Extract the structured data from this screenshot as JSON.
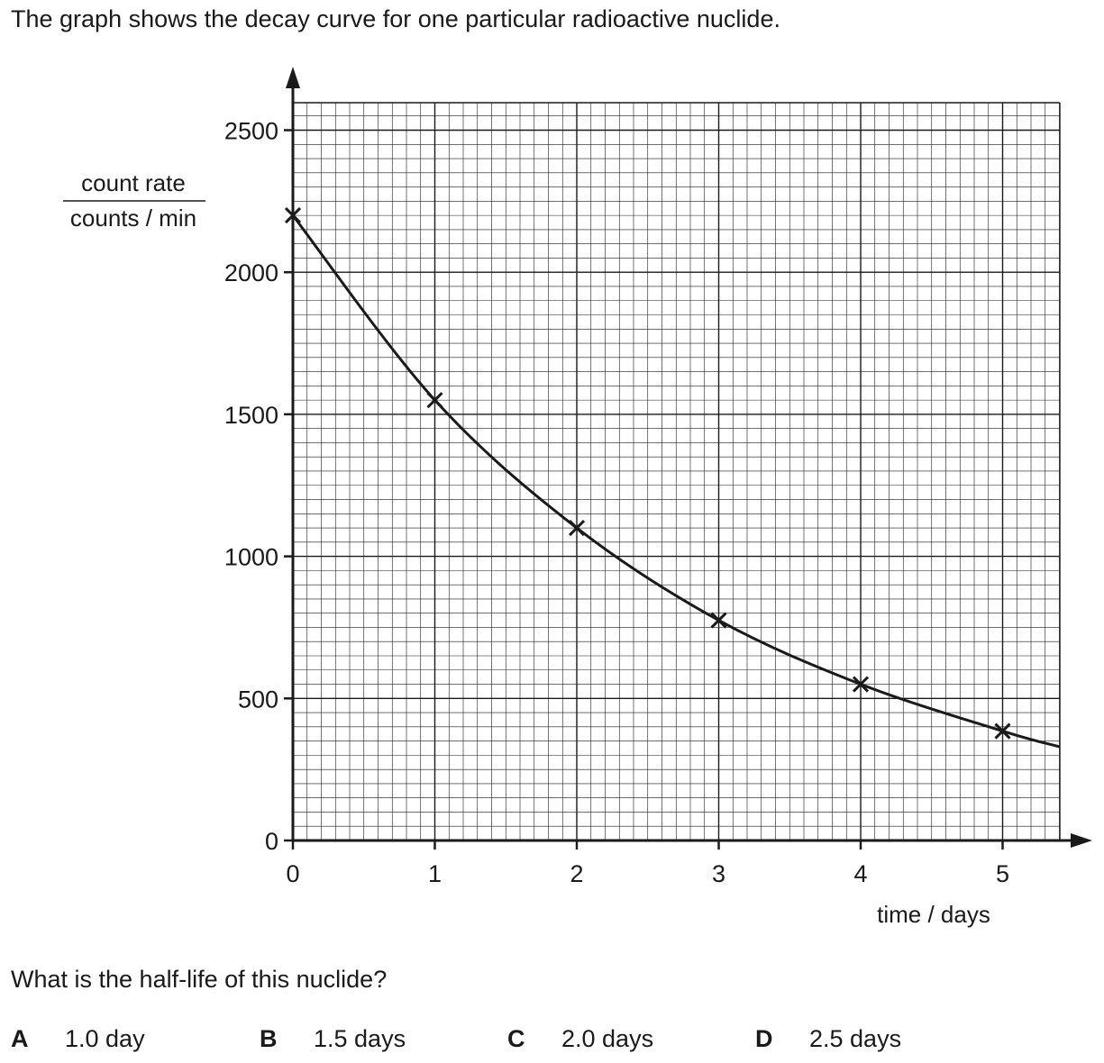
{
  "intro_text": "The graph shows the decay curve for one particular radioactive nuclide.",
  "question_text": "What is the half-life of this nuclide?",
  "options": [
    {
      "letter": "A",
      "text": "1.0 day"
    },
    {
      "letter": "B",
      "text": "1.5 days"
    },
    {
      "letter": "C",
      "text": "2.0 days"
    },
    {
      "letter": "D",
      "text": "2.5 days"
    }
  ],
  "chart_data": {
    "type": "line",
    "title": "",
    "xlabel": "time / days",
    "ylabel_top": "count rate",
    "ylabel_bottom": "counts / min",
    "x_ticks": [
      "0",
      "1",
      "2",
      "3",
      "4",
      "5"
    ],
    "y_ticks": [
      "0",
      "500",
      "1000",
      "1500",
      "2000",
      "2500"
    ],
    "xlim": [
      0,
      5.4
    ],
    "ylim": [
      0,
      2600
    ],
    "grid": true,
    "markers": "x",
    "points": [
      {
        "x": 0,
        "y": 2200
      },
      {
        "x": 1,
        "y": 1550
      },
      {
        "x": 2,
        "y": 1100
      },
      {
        "x": 3,
        "y": 775
      },
      {
        "x": 4,
        "y": 550
      },
      {
        "x": 5,
        "y": 385
      }
    ],
    "curve_end": {
      "x": 5.4,
      "y": 330
    },
    "colors": {
      "ink": "#1a1a1a",
      "grid": "#1a1a1a"
    }
  }
}
